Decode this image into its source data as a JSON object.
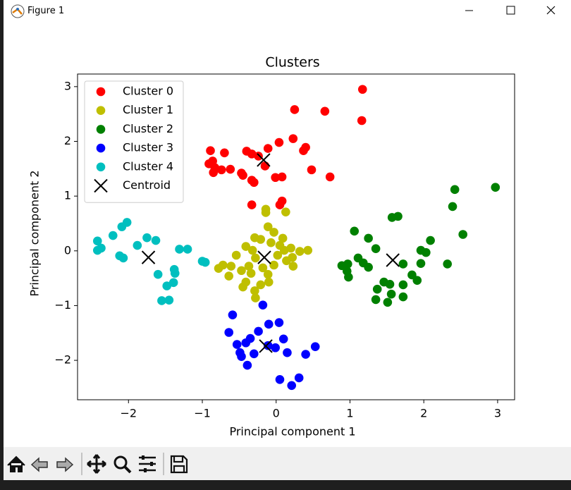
{
  "window": {
    "title": "Figure 1"
  },
  "chart_data": {
    "type": "scatter",
    "title": "Clusters",
    "xlabel": "Principal component 1",
    "ylabel": "Principal component 2",
    "xlim": [
      -2.69,
      3.23
    ],
    "ylim": [
      -2.72,
      3.23
    ],
    "xticks": [
      {
        "value": -2,
        "label": "−2"
      },
      {
        "value": -1,
        "label": "−1"
      },
      0,
      1,
      2,
      3
    ],
    "yticks": [
      {
        "value": -2,
        "label": "−2"
      },
      {
        "value": -1,
        "label": "−1"
      },
      0,
      1,
      2,
      3
    ],
    "grid": false,
    "legend": "upper left",
    "series": [
      {
        "name": "Cluster 0",
        "color": "#ff0000",
        "marker": "o",
        "x": [
          1.17,
          0.25,
          0.66,
          1.16,
          0.23,
          0.04,
          0.4,
          0.37,
          -0.11,
          -0.89,
          -0.7,
          -0.4,
          -0.33,
          -0.24,
          -0.86,
          -0.91,
          -0.83,
          -0.62,
          -0.74,
          -0.85,
          -0.47,
          -0.45,
          -0.33,
          -0.3,
          -0.15,
          -0.01,
          0.08,
          0.48,
          0.73,
          -0.33,
          0.08,
          0.05
        ],
        "y": [
          2.95,
          2.58,
          2.55,
          2.38,
          2.05,
          1.98,
          1.89,
          1.83,
          1.87,
          1.83,
          1.79,
          1.82,
          1.77,
          1.73,
          1.64,
          1.59,
          1.52,
          1.49,
          1.48,
          1.43,
          1.42,
          1.38,
          1.29,
          1.25,
          1.55,
          1.34,
          1.35,
          1.48,
          1.35,
          0.84,
          0.91,
          0.84
        ]
      },
      {
        "name": "Cluster 1",
        "color": "#bfbf00",
        "marker": "o",
        "x": [
          -0.14,
          -0.14,
          0.13,
          -0.29,
          -0.11,
          -0.03,
          0.09,
          -0.21,
          -0.07,
          0.05,
          0.2,
          0.43,
          0.32,
          -0.41,
          -0.54,
          -0.28,
          0.02,
          0.14,
          0.23,
          -0.03,
          -0.18,
          -0.37,
          -0.61,
          -0.72,
          -0.78,
          -0.47,
          -0.64,
          -0.34,
          -0.11,
          -0.41,
          -0.21,
          -0.1,
          -0.45,
          -0.29,
          -0.28,
          0.11,
          0.22,
          -0.32
        ],
        "y": [
          0.76,
          0.7,
          0.71,
          0.24,
          0.44,
          0.34,
          0.23,
          0.21,
          0.15,
          0.1,
          0.05,
          0.01,
          -0.01,
          0.08,
          -0.08,
          -0.13,
          -0.08,
          -0.18,
          -0.28,
          -0.26,
          -0.31,
          -0.28,
          -0.28,
          -0.26,
          -0.32,
          -0.36,
          -0.46,
          -0.41,
          -0.43,
          -0.57,
          -0.62,
          -0.57,
          -0.66,
          -0.73,
          -0.86,
          0.01,
          -0.12,
          0.01
        ]
      },
      {
        "name": "Cluster 2",
        "color": "#008000",
        "marker": "o",
        "x": [
          2.97,
          2.42,
          2.39,
          1.65,
          1.57,
          2.53,
          2.09,
          1.06,
          1.25,
          1.35,
          1.96,
          2.03,
          1.11,
          1.18,
          1.25,
          0.89,
          0.97,
          0.96,
          0.98,
          1.72,
          1.96,
          2.32,
          1.84,
          1.91,
          1.46,
          1.54,
          1.37,
          1.72,
          1.56,
          1.35,
          1.51,
          1.72
        ],
        "y": [
          1.16,
          1.12,
          0.81,
          0.63,
          0.61,
          0.3,
          0.19,
          0.36,
          0.23,
          0.04,
          0.01,
          -0.03,
          -0.13,
          -0.22,
          -0.3,
          -0.27,
          -0.24,
          -0.37,
          -0.48,
          -0.24,
          -0.23,
          -0.24,
          -0.44,
          -0.54,
          -0.57,
          -0.61,
          -0.7,
          -0.62,
          -0.79,
          -0.89,
          -0.94,
          -0.84
        ]
      },
      {
        "name": "Cluster 3",
        "color": "#0000ff",
        "marker": "o",
        "x": [
          -0.18,
          -0.59,
          -0.1,
          0.04,
          -0.24,
          -0.64,
          0.1,
          -0.35,
          -0.41,
          -0.53,
          -0.11,
          -0.01,
          0.15,
          -0.49,
          -0.3,
          -0.47,
          0.53,
          0.4,
          -0.39,
          0.05,
          0.31,
          0.21
        ],
        "y": [
          -0.99,
          -1.17,
          -1.34,
          -1.31,
          -1.47,
          -1.49,
          -1.61,
          -1.6,
          -1.68,
          -1.71,
          -1.73,
          -1.77,
          -1.86,
          -1.86,
          -1.88,
          -1.93,
          -1.75,
          -1.89,
          -2.09,
          -2.35,
          -2.32,
          -2.46
        ]
      },
      {
        "name": "Cluster 4",
        "color": "#00bfbf",
        "marker": "o",
        "x": [
          -2.02,
          -2.09,
          -2.21,
          -2.42,
          -1.75,
          -1.63,
          -1.88,
          -2.37,
          -2.42,
          -1.31,
          -1.2,
          -2.12,
          -2.07,
          -1.0,
          -0.96,
          -1.38,
          -1.37,
          -1.6,
          -1.39,
          -1.48,
          -1.45,
          -1.55
        ],
        "y": [
          0.52,
          0.44,
          0.28,
          0.18,
          0.24,
          0.19,
          0.1,
          0.05,
          0.01,
          0.03,
          0.03,
          -0.09,
          -0.13,
          -0.19,
          -0.21,
          -0.34,
          -0.41,
          -0.43,
          -0.58,
          -0.64,
          -0.9,
          -0.91
        ]
      },
      {
        "name": "Centroid",
        "color": "#000000",
        "marker": "x",
        "x": [
          -0.17,
          -0.16,
          1.58,
          -0.14,
          -1.73
        ],
        "y": [
          1.66,
          -0.12,
          -0.17,
          -1.74,
          -0.12
        ]
      }
    ]
  }
}
